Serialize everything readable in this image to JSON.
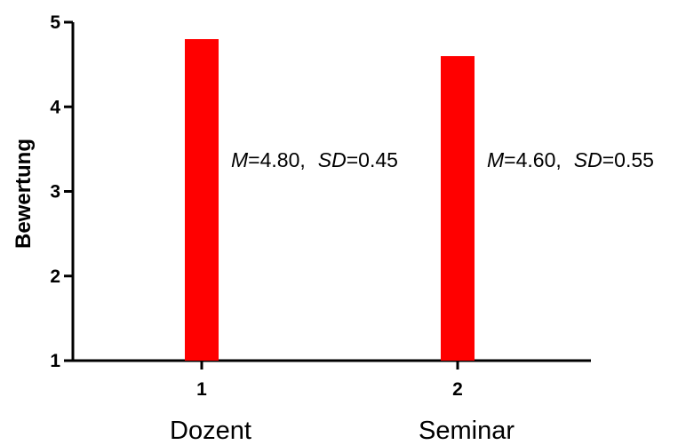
{
  "chart_data": {
    "type": "bar",
    "ylabel": "Bewertung",
    "ylim": [
      1,
      5
    ],
    "yticks": [
      "1",
      "2",
      "3",
      "4",
      "5"
    ],
    "xticks": [
      "1",
      "2"
    ],
    "categories": [
      "Dozent",
      "Seminar"
    ],
    "values": [
      4.8,
      4.6
    ],
    "bar_color": "#ff0000",
    "annotations": [
      {
        "m_label": "M",
        "m_value": "=4.80,",
        "sd_label": "SD",
        "sd_value": "=0.45"
      },
      {
        "m_label": "M",
        "m_value": "=4.60,",
        "sd_label": "SD",
        "sd_value": "=0.55"
      }
    ]
  }
}
